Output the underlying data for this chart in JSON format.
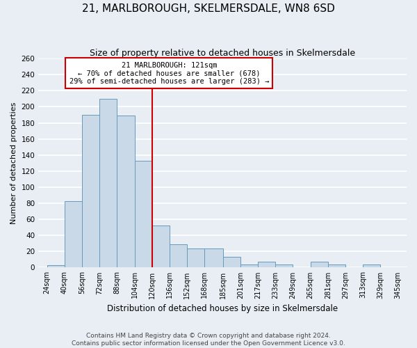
{
  "title": "21, MARLBOROUGH, SKELMERSDALE, WN8 6SD",
  "subtitle": "Size of property relative to detached houses in Skelmersdale",
  "xlabel": "Distribution of detached houses by size in Skelmersdale",
  "ylabel": "Number of detached properties",
  "bin_labels": [
    "24sqm",
    "40sqm",
    "56sqm",
    "72sqm",
    "88sqm",
    "104sqm",
    "120sqm",
    "136sqm",
    "152sqm",
    "168sqm",
    "185sqm",
    "201sqm",
    "217sqm",
    "233sqm",
    "249sqm",
    "265sqm",
    "281sqm",
    "297sqm",
    "313sqm",
    "329sqm",
    "345sqm"
  ],
  "bin_edges": [
    24,
    40,
    56,
    72,
    88,
    104,
    120,
    136,
    152,
    168,
    185,
    201,
    217,
    233,
    249,
    265,
    281,
    297,
    313,
    329,
    345
  ],
  "bar_heights": [
    3,
    83,
    190,
    210,
    189,
    133,
    52,
    29,
    24,
    24,
    13,
    4,
    7,
    4,
    0,
    7,
    4,
    0,
    4,
    0,
    0
  ],
  "bar_color": "#c9d9e8",
  "bar_edge_color": "#6699bb",
  "vline_x": 120,
  "vline_color": "#cc0000",
  "annotation_line1": "21 MARLBOROUGH: 121sqm",
  "annotation_line2": "← 70% of detached houses are smaller (678)",
  "annotation_line3": "29% of semi-detached houses are larger (283) →",
  "annotation_box_edge_color": "#cc0000",
  "annotation_box_face_color": "#ffffff",
  "ylim": [
    0,
    260
  ],
  "yticks": [
    0,
    20,
    40,
    60,
    80,
    100,
    120,
    140,
    160,
    180,
    200,
    220,
    240,
    260
  ],
  "ytick_fontsize": 7.5,
  "xtick_fontsize": 7,
  "footnote1": "Contains HM Land Registry data © Crown copyright and database right 2024.",
  "footnote2": "Contains public sector information licensed under the Open Government Licence v3.0.",
  "background_color": "#e8eef4",
  "grid_color": "#ffffff",
  "title_fontsize": 11,
  "subtitle_fontsize": 9,
  "xlabel_fontsize": 8.5,
  "ylabel_fontsize": 8,
  "footnote_fontsize": 6.5,
  "footnote_color": "#444444"
}
